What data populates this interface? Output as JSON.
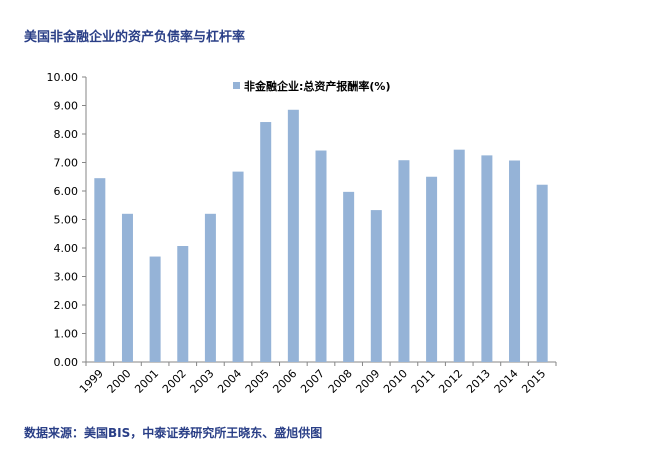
{
  "page": {
    "title": "美国非金融企业的资产负债率与杠杆率",
    "source": "数据来源：美国BIS，中泰证券研究所王晓东、盛旭供图"
  },
  "colors": {
    "bar": "#95b3d7",
    "axis": "#868686",
    "text": "#000000",
    "title": "#2a3f87"
  },
  "chart_data": {
    "type": "bar",
    "title": "",
    "xlabel": "",
    "ylabel": "",
    "categories": [
      "1999",
      "2000",
      "2001",
      "2002",
      "2003",
      "2004",
      "2005",
      "2006",
      "2007",
      "2008",
      "2009",
      "2010",
      "2011",
      "2012",
      "2013",
      "2014",
      "2015"
    ],
    "series": [
      {
        "name": "非金融企业:总资产报酬率(%)",
        "values": [
          6.45,
          5.2,
          3.7,
          4.07,
          5.2,
          6.68,
          8.42,
          8.85,
          7.42,
          5.97,
          5.33,
          7.08,
          6.5,
          7.45,
          7.25,
          7.07,
          6.22
        ]
      }
    ],
    "ylim": [
      0,
      10
    ],
    "yticks": [
      "0.00",
      "1.00",
      "2.00",
      "3.00",
      "4.00",
      "5.00",
      "6.00",
      "7.00",
      "8.00",
      "9.00",
      "10.00"
    ],
    "grid": false,
    "legend": "top-center"
  }
}
